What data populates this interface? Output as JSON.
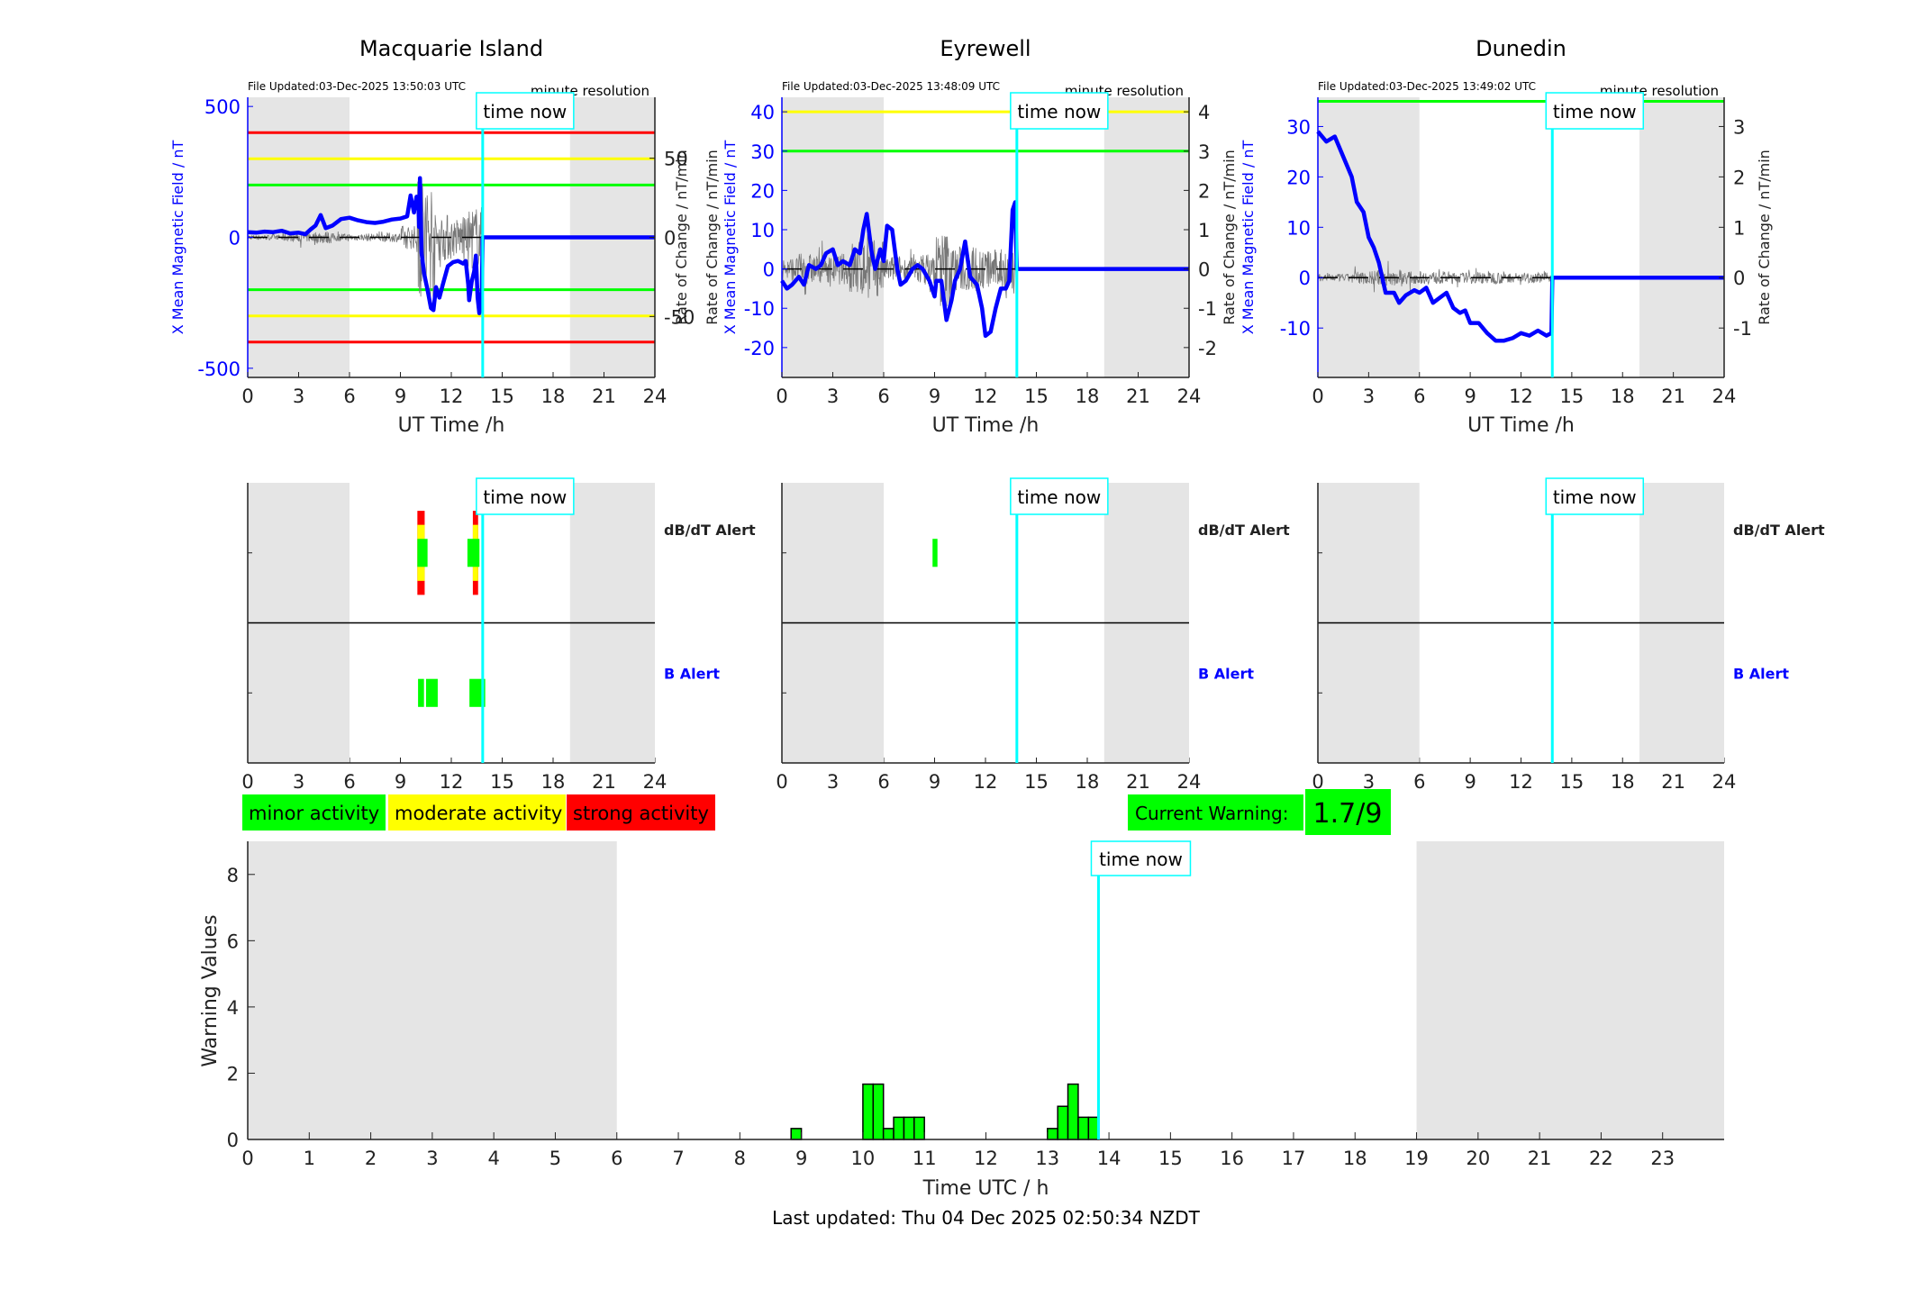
{
  "colors": {
    "field": "#0000ff",
    "rate": "#555555",
    "now": "#00ffff",
    "night": "#e5e5e5",
    "minor": "#00ff00",
    "moderate": "#ffff00",
    "strong": "#ff0000"
  },
  "chart_data": {
    "stations": [
      {
        "title": "Macquarie Island",
        "file_updated": "File Updated:03-Dec-2025 13:50:03 UTC",
        "resolution": "minute resolution",
        "time_now_label": "time now",
        "time_now": 13.85,
        "xlabel": "UT Time /h",
        "ylabel_left": "X Mean Magnetic Field / nT",
        "ylabel_right": "Rate of Change / nT/min",
        "ylabel_left_extra": "",
        "xlim": [
          0,
          24
        ],
        "xticks": [
          "0",
          "3",
          "6",
          "9",
          "12",
          "15",
          "18",
          "21",
          "24"
        ],
        "ylim": [
          -535,
          535
        ],
        "yticks_left": [
          "500",
          "0",
          "-500"
        ],
        "yticks_left_values": [
          500,
          0,
          -500
        ],
        "ylim_right": [
          -88.5,
          88.5
        ],
        "yticks_right": [
          "50",
          "0",
          "-50"
        ],
        "yticks_right_values": [
          50,
          0,
          -50
        ],
        "night": [
          [
            0,
            6
          ],
          [
            19,
            24
          ]
        ],
        "thresholds": [
          {
            "value": 400,
            "color": "#ff0000"
          },
          {
            "value": -400,
            "color": "#ff0000"
          },
          {
            "value": 300,
            "color": "#ffff00"
          },
          {
            "value": -300,
            "color": "#ffff00"
          },
          {
            "value": 200,
            "color": "#00ff00"
          },
          {
            "value": -200,
            "color": "#00ff00"
          }
        ],
        "x_field": [
          [
            0,
            20
          ],
          [
            0.5,
            18
          ],
          [
            1,
            22
          ],
          [
            1.5,
            20
          ],
          [
            2,
            25
          ],
          [
            2.5,
            15
          ],
          [
            3,
            18
          ],
          [
            3.4,
            12
          ],
          [
            3.7,
            30
          ],
          [
            4,
            45
          ],
          [
            4.3,
            85
          ],
          [
            4.6,
            35
          ],
          [
            5,
            45
          ],
          [
            5.5,
            70
          ],
          [
            6,
            75
          ],
          [
            6.5,
            65
          ],
          [
            7,
            58
          ],
          [
            7.5,
            55
          ],
          [
            8,
            60
          ],
          [
            8.5,
            68
          ],
          [
            9,
            72
          ],
          [
            9.4,
            80
          ],
          [
            9.6,
            160
          ],
          [
            9.8,
            95
          ],
          [
            9.95,
            155
          ],
          [
            10.05,
            150
          ],
          [
            10.1,
            40
          ],
          [
            10.15,
            226
          ],
          [
            10.25,
            -60
          ],
          [
            10.4,
            -140
          ],
          [
            10.6,
            -200
          ],
          [
            10.8,
            -270
          ],
          [
            10.95,
            -278
          ],
          [
            11.1,
            -190
          ],
          [
            11.3,
            -230
          ],
          [
            11.5,
            -180
          ],
          [
            11.8,
            -110
          ],
          [
            12.1,
            -95
          ],
          [
            12.4,
            -90
          ],
          [
            12.7,
            -100
          ],
          [
            12.85,
            -90
          ],
          [
            13.0,
            -180
          ],
          [
            13.05,
            -240
          ],
          [
            13.2,
            -170
          ],
          [
            13.35,
            -130
          ],
          [
            13.45,
            -70
          ],
          [
            13.55,
            -230
          ],
          [
            13.65,
            -290
          ],
          [
            13.8,
            -200
          ],
          [
            13.85,
            0
          ],
          [
            24,
            0
          ]
        ],
        "rate_amplitude_by_hour": [
          3,
          3,
          5,
          6,
          8,
          5,
          4,
          5,
          6,
          15,
          80,
          30,
          25,
          40
        ],
        "alerts_dbdt": [
          {
            "start": 10.0,
            "end": 10.43,
            "level": 3
          },
          {
            "start": 10.0,
            "end": 10.43,
            "level": 2
          },
          {
            "start": 10.0,
            "end": 10.6,
            "level": 1
          },
          {
            "start": 13.27,
            "end": 13.58,
            "level": 3
          },
          {
            "start": 13.27,
            "end": 13.58,
            "level": 2
          },
          {
            "start": 12.95,
            "end": 13.66,
            "level": 1
          }
        ],
        "alerts_b": [
          {
            "start": 10.04,
            "end": 10.39,
            "level": 1
          },
          {
            "start": 10.51,
            "end": 11.2,
            "level": 1
          },
          {
            "start": 13.07,
            "end": 14.0,
            "level": 1
          }
        ]
      },
      {
        "title": "Eyrewell",
        "file_updated": "File Updated:03-Dec-2025 13:48:09 UTC",
        "resolution": "minute resolution",
        "time_now_label": "time now",
        "time_now": 13.85,
        "xlabel": "UT Time /h",
        "ylabel_left": "X Mean Magnetic Field / nT",
        "ylabel_right": "Rate of Change / nT/min",
        "ylabel_left_extra": "Rate of Change / nT/min",
        "xlim": [
          0,
          24
        ],
        "xticks": [
          "0",
          "3",
          "6",
          "9",
          "12",
          "15",
          "18",
          "21",
          "24"
        ],
        "ylim": [
          -27.6,
          43.7
        ],
        "yticks_left": [
          "40",
          "30",
          "20",
          "10",
          "0",
          "-10",
          "-20"
        ],
        "yticks_left_values": [
          40,
          30,
          20,
          10,
          0,
          -10,
          -20
        ],
        "ylim_right": [
          -2.76,
          4.37
        ],
        "yticks_right": [
          "4",
          "3",
          "2",
          "1",
          "0",
          "-1",
          "-2"
        ],
        "yticks_right_values": [
          4,
          3,
          2,
          1,
          0,
          -1,
          -2
        ],
        "night": [
          [
            0,
            6
          ],
          [
            19,
            24
          ]
        ],
        "thresholds": [
          {
            "value": 40,
            "color": "#ffff00"
          },
          {
            "value": 30,
            "color": "#00ff00"
          }
        ],
        "x_field": [
          [
            0,
            -3
          ],
          [
            0.3,
            -5
          ],
          [
            0.6,
            -4
          ],
          [
            1,
            -2
          ],
          [
            1.3,
            -4
          ],
          [
            1.6,
            1
          ],
          [
            2,
            0
          ],
          [
            2.3,
            1
          ],
          [
            2.6,
            4
          ],
          [
            3,
            5
          ],
          [
            3.3,
            1
          ],
          [
            3.6,
            2
          ],
          [
            4,
            1
          ],
          [
            4.3,
            5
          ],
          [
            4.6,
            4
          ],
          [
            4.8,
            10
          ],
          [
            5.0,
            14
          ],
          [
            5.3,
            4
          ],
          [
            5.5,
            0
          ],
          [
            5.8,
            5
          ],
          [
            6.0,
            2
          ],
          [
            6.2,
            11
          ],
          [
            6.5,
            10
          ],
          [
            6.8,
            0
          ],
          [
            7.0,
            -4
          ],
          [
            7.3,
            -3
          ],
          [
            7.7,
            0
          ],
          [
            8,
            1
          ],
          [
            8.3,
            0
          ],
          [
            8.7,
            -3
          ],
          [
            9.0,
            -7
          ],
          [
            9.1,
            -3
          ],
          [
            9.4,
            -3
          ],
          [
            9.7,
            -13
          ],
          [
            10.0,
            -8
          ],
          [
            10.2,
            -3
          ],
          [
            10.5,
            0
          ],
          [
            10.8,
            7
          ],
          [
            11.1,
            -2
          ],
          [
            11.5,
            -4
          ],
          [
            11.8,
            -10
          ],
          [
            12.0,
            -17
          ],
          [
            12.3,
            -16
          ],
          [
            12.6,
            -10
          ],
          [
            12.9,
            -5
          ],
          [
            13.2,
            -5
          ],
          [
            13.4,
            -3
          ],
          [
            13.6,
            15
          ],
          [
            13.75,
            17
          ],
          [
            13.85,
            0
          ],
          [
            24,
            0
          ]
        ],
        "rate_amplitude_by_hour": [
          0.6,
          0.8,
          0.7,
          0.8,
          1.5,
          1.5,
          0.7,
          0.6,
          0.8,
          2.0,
          1.2,
          1.2,
          1.0,
          1.5
        ],
        "alerts_dbdt": [
          {
            "start": 8.88,
            "end": 9.17,
            "level": 1
          }
        ],
        "alerts_b": []
      },
      {
        "title": "Dunedin",
        "file_updated": "File Updated:03-Dec-2025 13:49:02 UTC",
        "resolution": "minute resolution",
        "time_now_label": "time now",
        "time_now": 13.85,
        "xlabel": "UT Time /h",
        "ylabel_left": "X Mean Magnetic Field / nT",
        "ylabel_right": "Rate of Change / nT/min",
        "ylabel_left_extra": "",
        "xlim": [
          0,
          24
        ],
        "xticks": [
          "0",
          "3",
          "6",
          "9",
          "12",
          "15",
          "18",
          "21",
          "24"
        ],
        "ylim": [
          -19.8,
          35.8
        ],
        "yticks_left": [
          "30",
          "20",
          "10",
          "0",
          "-10"
        ],
        "yticks_left_values": [
          30,
          20,
          10,
          0,
          -10
        ],
        "ylim_right": [
          -1.98,
          3.58
        ],
        "yticks_right": [
          "3",
          "2",
          "1",
          "0",
          "-1"
        ],
        "yticks_right_values": [
          3,
          2,
          1,
          0,
          -1
        ],
        "night": [
          [
            0,
            6
          ],
          [
            19,
            24
          ]
        ],
        "thresholds": [
          {
            "value": 35,
            "color": "#00ff00"
          }
        ],
        "x_field": [
          [
            0,
            29
          ],
          [
            0.5,
            27
          ],
          [
            1,
            28
          ],
          [
            1.5,
            24
          ],
          [
            2,
            20
          ],
          [
            2.3,
            15
          ],
          [
            2.7,
            13
          ],
          [
            3,
            8
          ],
          [
            3.3,
            6
          ],
          [
            3.6,
            3
          ],
          [
            4,
            -3
          ],
          [
            4.5,
            -3
          ],
          [
            4.8,
            -5
          ],
          [
            5.2,
            -3.5
          ],
          [
            5.7,
            -2.5
          ],
          [
            6,
            -3
          ],
          [
            6.4,
            -2
          ],
          [
            6.8,
            -5
          ],
          [
            7.2,
            -4
          ],
          [
            7.6,
            -3
          ],
          [
            8,
            -6
          ],
          [
            8.4,
            -7
          ],
          [
            8.7,
            -6.5
          ],
          [
            9,
            -9
          ],
          [
            9.5,
            -9
          ],
          [
            10,
            -11
          ],
          [
            10.5,
            -12.5
          ],
          [
            11,
            -12.5
          ],
          [
            11.5,
            -12
          ],
          [
            12,
            -11
          ],
          [
            12.5,
            -11.5
          ],
          [
            13,
            -10.5
          ],
          [
            13.5,
            -11.5
          ],
          [
            13.8,
            -11
          ],
          [
            13.85,
            0
          ],
          [
            24,
            0
          ]
        ],
        "rate_amplitude_by_hour": [
          0.15,
          0.15,
          0.25,
          0.3,
          0.35,
          0.25,
          0.25,
          0.25,
          0.2,
          0.25,
          0.25,
          0.2,
          0.2,
          0.2
        ],
        "alerts_dbdt": [],
        "alerts_b": []
      }
    ],
    "alert_labels": {
      "dbdt": "dB/dT Alert",
      "b": "B Alert"
    },
    "legend": [
      {
        "label": "minor activity",
        "color": "#00ff00"
      },
      {
        "label": "moderate activity",
        "color": "#ffff00"
      },
      {
        "label": "strong activity",
        "color": "#ff0000"
      }
    ],
    "current_warning": {
      "label": "Current Warning:",
      "value": "1.7/9"
    },
    "warning": {
      "type": "bar",
      "xlabel": "Time UTC / h",
      "ylabel": "Warning Values",
      "xlim": [
        0,
        24
      ],
      "ylim": [
        0,
        9
      ],
      "xticks": [
        "0",
        "1",
        "2",
        "3",
        "4",
        "5",
        "6",
        "7",
        "8",
        "9",
        "10",
        "11",
        "12",
        "13",
        "14",
        "15",
        "16",
        "17",
        "18",
        "19",
        "20",
        "21",
        "22",
        "23"
      ],
      "yticks": [
        "0",
        "2",
        "4",
        "6",
        "8"
      ],
      "night": [
        [
          0,
          6
        ],
        [
          19,
          24
        ]
      ],
      "time_now": 13.83,
      "time_now_label": "time now",
      "bin_width_h": 0.1667,
      "bars": [
        [
          8.833,
          0.33
        ],
        [
          10.0,
          1.67
        ],
        [
          10.167,
          1.67
        ],
        [
          10.333,
          0.33
        ],
        [
          10.5,
          0.67
        ],
        [
          10.667,
          0.67
        ],
        [
          10.833,
          0.67
        ],
        [
          13.0,
          0.33
        ],
        [
          13.167,
          1.0
        ],
        [
          13.333,
          1.67
        ],
        [
          13.5,
          0.67
        ],
        [
          13.667,
          0.67
        ]
      ]
    },
    "footer": "Last updated: Thu 04 Dec 2025 02:50:34 NZDT"
  }
}
